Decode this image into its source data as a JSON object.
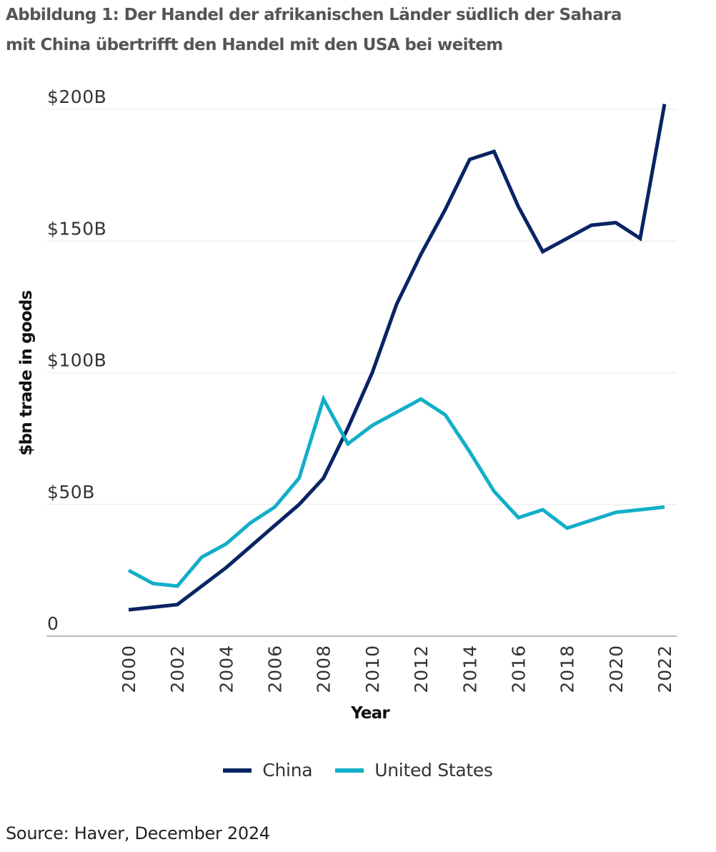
{
  "title_lines": [
    "Abbildung 1: Der Handel der afrikanischen Länder südlich der Sahara",
    "mit China übertrifft den Handel mit den USA bei weitem"
  ],
  "source": "Source: Haver, December 2024",
  "chart_data": {
    "type": "line",
    "title": "Abbildung 1: Der Handel der afrikanischen Länder südlich der Sahara mit China übertrifft den Handel mit den USA bei weitem",
    "xlabel": "Year",
    "ylabel": "$bn trade in goods",
    "x": [
      2000,
      2001,
      2002,
      2003,
      2004,
      2005,
      2006,
      2007,
      2008,
      2009,
      2010,
      2011,
      2012,
      2013,
      2014,
      2015,
      2016,
      2017,
      2018,
      2019,
      2020,
      2021,
      2022
    ],
    "xticks": [
      "2000",
      "2002",
      "2004",
      "2006",
      "2008",
      "2010",
      "2012",
      "2014",
      "2016",
      "2018",
      "2020",
      "2022"
    ],
    "xtick_values": [
      2000,
      2002,
      2004,
      2006,
      2008,
      2010,
      2012,
      2014,
      2016,
      2018,
      2020,
      2022
    ],
    "xlim": [
      1996.6,
      2022.5
    ],
    "yticks": [
      "0",
      "$50B",
      "$100B",
      "$150B",
      "$200B"
    ],
    "ytick_values": [
      0,
      50,
      100,
      150,
      200
    ],
    "ylim": [
      0,
      200
    ],
    "grid": "horizontal",
    "legend_position": "bottom-center",
    "series": [
      {
        "name": "China",
        "color": "#0a2463",
        "values": [
          10,
          11,
          12,
          19,
          26,
          34,
          42,
          50,
          60,
          79,
          100,
          126,
          145,
          162,
          181,
          184,
          163,
          146,
          151,
          156,
          157,
          151,
          202
        ]
      },
      {
        "name": "United States",
        "color": "#12aec8",
        "values": [
          25,
          20,
          19,
          30,
          35,
          43,
          49,
          60,
          90,
          73,
          80,
          85,
          90,
          84,
          70,
          55,
          45,
          48,
          41,
          44,
          47,
          48,
          49
        ]
      }
    ]
  },
  "legend": [
    {
      "label": "China",
      "color": "#0a2463"
    },
    {
      "label": "United States",
      "color": "#12aec8"
    }
  ]
}
